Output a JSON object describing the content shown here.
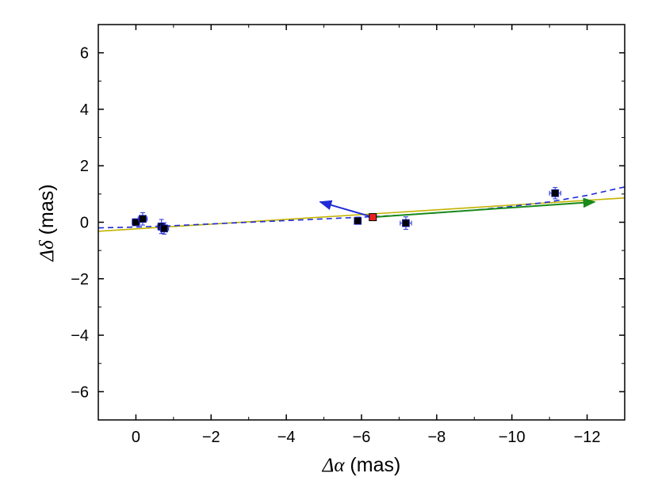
{
  "chart_data": {
    "type": "scatter",
    "xlabel": {
      "symbol": "Δα",
      "unit": "(mas)"
    },
    "ylabel": {
      "symbol": "Δδ",
      "unit": "(mas)"
    },
    "xlim": [
      1,
      -13
    ],
    "ylim": [
      -7,
      7
    ],
    "x_reversed": true,
    "grid": false,
    "xticks": [
      0,
      -2,
      -4,
      -6,
      -8,
      -10,
      -12
    ],
    "yticks": [
      6,
      4,
      2,
      0,
      -2,
      -4,
      -6
    ],
    "xtick_labels": [
      "0",
      "−2",
      "−4",
      "−6",
      "−8",
      "−10",
      "−12"
    ],
    "ytick_labels": [
      "6",
      "4",
      "2",
      "0",
      "−2",
      "−4",
      "−6"
    ],
    "series": [
      {
        "kind": "points",
        "color": "#000000",
        "errorbar_color": "#1f2bd6",
        "points": [
          {
            "x": 0.0,
            "y": 0.0,
            "xerr": 0.1,
            "yerr": 0.1
          },
          {
            "x": -0.18,
            "y": 0.12,
            "xerr": 0.12,
            "yerr": 0.22
          },
          {
            "x": -0.68,
            "y": -0.15,
            "xerr": 0.1,
            "yerr": 0.25
          },
          {
            "x": -0.75,
            "y": -0.22,
            "xerr": 0.12,
            "yerr": 0.2
          },
          {
            "x": -5.9,
            "y": 0.05,
            "xerr": 0.05,
            "yerr": 0.05
          },
          {
            "x": -7.18,
            "y": -0.03,
            "xerr": 0.15,
            "yerr": 0.22
          },
          {
            "x": -11.15,
            "y": 1.03,
            "xerr": 0.15,
            "yerr": 0.2
          }
        ]
      },
      {
        "kind": "highlight-point",
        "color": "#e8231f",
        "points": [
          {
            "x": -6.3,
            "y": 0.18
          }
        ]
      },
      {
        "kind": "line",
        "style": "solid",
        "color": "#c2b300",
        "points": [
          {
            "x": 1,
            "y": -0.32
          },
          {
            "x": -13,
            "y": 0.86
          }
        ]
      },
      {
        "kind": "line",
        "style": "dashed",
        "color": "#1f2bd6",
        "points": [
          {
            "x": 1,
            "y": -0.2
          },
          {
            "x": 0,
            "y": -0.17
          },
          {
            "x": -1,
            "y": -0.12
          },
          {
            "x": -2,
            "y": -0.06
          },
          {
            "x": -3,
            "y": 0.0
          },
          {
            "x": -4,
            "y": 0.06
          },
          {
            "x": -5,
            "y": 0.12
          },
          {
            "x": -6,
            "y": 0.18
          },
          {
            "x": -7,
            "y": 0.25
          },
          {
            "x": -8,
            "y": 0.33
          },
          {
            "x": -9,
            "y": 0.43
          },
          {
            "x": -10,
            "y": 0.56
          },
          {
            "x": -11,
            "y": 0.72
          },
          {
            "x": -12,
            "y": 0.95
          },
          {
            "x": -13,
            "y": 1.25
          }
        ]
      }
    ],
    "arrows": [
      {
        "from": {
          "x": -6.3,
          "y": 0.18
        },
        "to": {
          "x": -4.9,
          "y": 0.72
        },
        "color": "#1f2bd6"
      },
      {
        "from": {
          "x": -6.3,
          "y": 0.18
        },
        "to": {
          "x": -12.2,
          "y": 0.72
        },
        "color": "#1a8a1a"
      }
    ]
  }
}
